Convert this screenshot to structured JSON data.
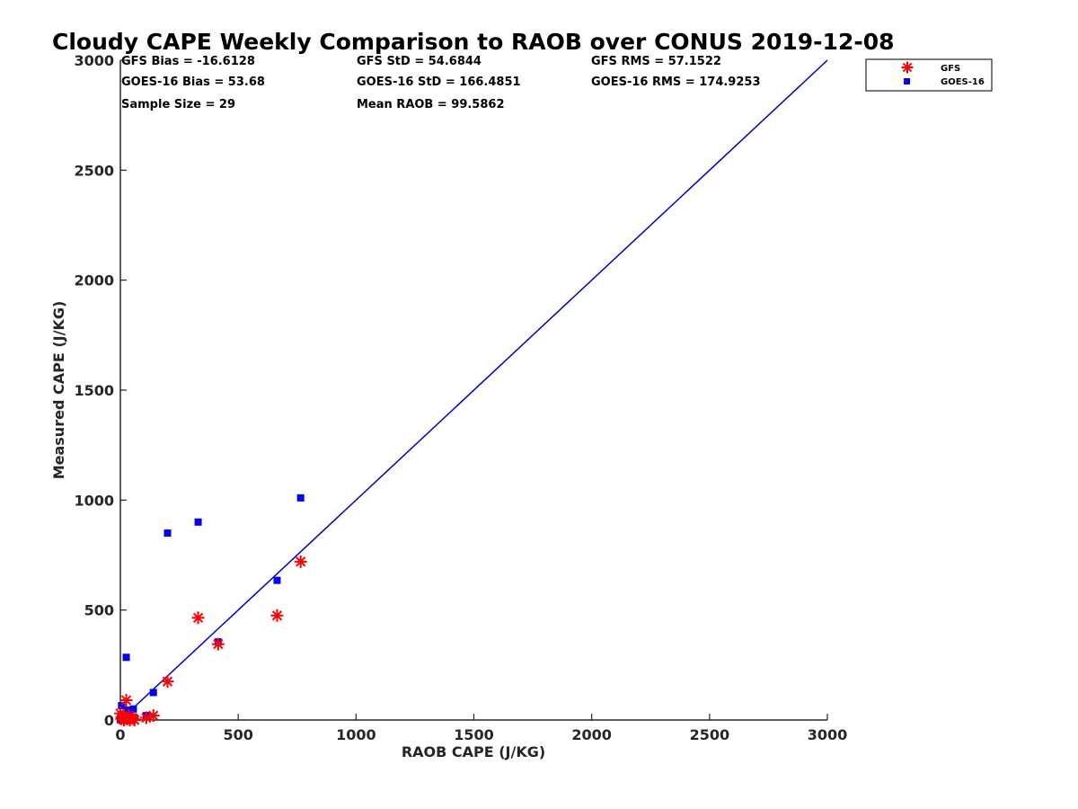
{
  "chart_data": {
    "type": "scatter",
    "title": "Cloudy CAPE Weekly Comparison to RAOB over CONUS 2019-12-08",
    "xlabel": "RAOB CAPE (J/KG)",
    "ylabel": "Measured CAPE (J/KG)",
    "xlim": [
      0,
      3000
    ],
    "ylim": [
      0,
      3000
    ],
    "xticks": [
      0,
      500,
      1000,
      1500,
      2000,
      2500,
      3000
    ],
    "yticks": [
      0,
      500,
      1000,
      1500,
      2000,
      2500,
      3000
    ],
    "grid": false,
    "legend_position": "top-right, outside plot",
    "reference_line": {
      "x": [
        0,
        3000
      ],
      "y": [
        0,
        3000
      ],
      "color": "#0000cc"
    },
    "stats": [
      [
        "GFS Bias = -16.6128",
        "GFS StD = 54.6844",
        "GFS RMS = 57.1522"
      ],
      [
        "GOES-16 Bias = 53.68",
        "GOES-16 StD = 166.4851",
        "GOES-16 RMS = 174.9253"
      ],
      [
        "Sample Size = 29",
        "Mean RAOB = 99.5862",
        ""
      ]
    ],
    "series": [
      {
        "name": "GFS",
        "marker": "asterisk",
        "color": "#ff0000",
        "points": [
          [
            0,
            30
          ],
          [
            5,
            5
          ],
          [
            10,
            15
          ],
          [
            15,
            0
          ],
          [
            20,
            10
          ],
          [
            25,
            90
          ],
          [
            30,
            5
          ],
          [
            35,
            20
          ],
          [
            40,
            0
          ],
          [
            50,
            10
          ],
          [
            55,
            5
          ],
          [
            60,
            0
          ],
          [
            110,
            10
          ],
          [
            140,
            20
          ],
          [
            200,
            175
          ],
          [
            330,
            465
          ],
          [
            415,
            345
          ],
          [
            665,
            475
          ],
          [
            765,
            720
          ]
        ]
      },
      {
        "name": "GOES-16",
        "marker": "square",
        "color": "#0000ff",
        "points": [
          [
            0,
            5
          ],
          [
            5,
            0
          ],
          [
            5,
            65
          ],
          [
            10,
            20
          ],
          [
            15,
            10
          ],
          [
            20,
            0
          ],
          [
            25,
            285
          ],
          [
            30,
            45
          ],
          [
            35,
            5
          ],
          [
            40,
            15
          ],
          [
            50,
            0
          ],
          [
            55,
            50
          ],
          [
            110,
            20
          ],
          [
            140,
            125
          ],
          [
            200,
            850
          ],
          [
            330,
            900
          ],
          [
            415,
            355
          ],
          [
            665,
            635
          ],
          [
            765,
            1010
          ]
        ]
      }
    ]
  }
}
